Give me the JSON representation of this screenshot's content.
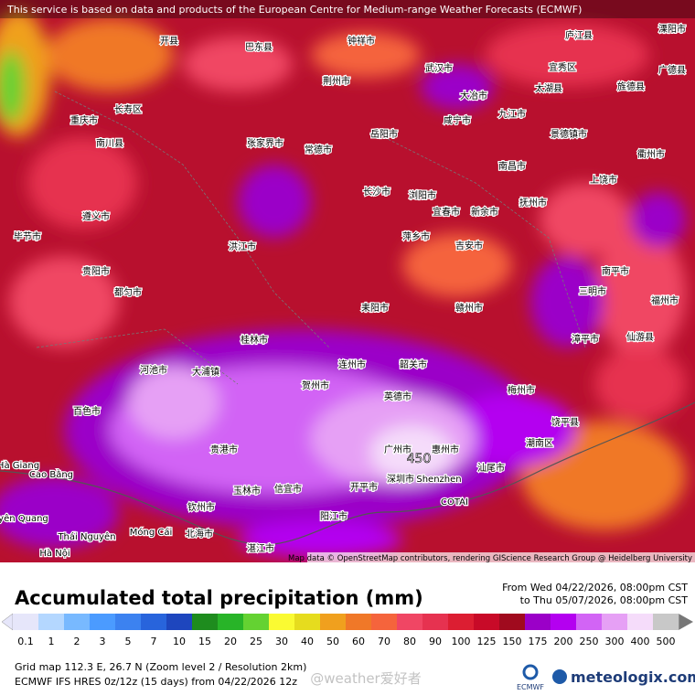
{
  "header": {
    "notice": "This service is based on data and products of the European Centre for Medium-range Weather Forecasts (ECMWF)"
  },
  "map": {
    "cities": [
      "武汉市",
      "荆州市",
      "岳阳市",
      "张家界市",
      "常德市",
      "长沙市",
      "浏阳市",
      "南昌市",
      "九江市",
      "景德镇市",
      "上饶市",
      "衢州市",
      "抚州市",
      "宜春市",
      "新余市",
      "萍乡市",
      "吉安市",
      "赣州市",
      "三明市",
      "南平市",
      "福州市",
      "漳平市",
      "仙游县",
      "梅州市",
      "潮南区",
      "饶平县",
      "汕尾市",
      "惠州市",
      "广州市",
      "深圳市",
      "Shenzhen",
      "COTAI",
      "开平市",
      "阳江市",
      "信宜市",
      "玉林市",
      "贵港市",
      "钦州市",
      "北海市",
      "湛江市",
      "Cao Bằng",
      "Hà Giang",
      "Tuyên Quang",
      "Thái Nguyên",
      "Móng Cái",
      "Hà Nội",
      "桂林市",
      "河池市",
      "大浦镇",
      "百色市",
      "韶关市",
      "英德市",
      "连州市",
      "贺州市",
      "耒阳市",
      "洪江市",
      "贵阳市",
      "遵义市",
      "毕节市",
      "都匀市",
      "庐江县",
      "宜秀区",
      "太湖县",
      "旌德县",
      "溧阳市",
      "广德县",
      "大冶市",
      "咸宁市",
      "重庆市",
      "长寿区",
      "南川县",
      "开县",
      "巴东县",
      "钟祥市"
    ],
    "max_label": "450",
    "attribution": "Map data © OpenStreetMap contributors, rendering GIScience Research Group @ Heidelberg University"
  },
  "title": "Accumulated total precipitation (mm)",
  "period": {
    "from": "From Wed 04/22/2026, 08:00pm CST",
    "to": "to Thu 05/07/2026, 08:00pm CST"
  },
  "legend": {
    "items": [
      {
        "value": 0.1,
        "color": "#e6e6fa"
      },
      {
        "value": 1,
        "color": "#b4d7ff"
      },
      {
        "value": 2,
        "color": "#78b9ff"
      },
      {
        "value": 3,
        "color": "#4b9bff"
      },
      {
        "value": 5,
        "color": "#3c82f0"
      },
      {
        "value": 7,
        "color": "#2864dc"
      },
      {
        "value": 10,
        "color": "#1e46be"
      },
      {
        "value": 15,
        "color": "#1e8c1e"
      },
      {
        "value": 20,
        "color": "#28b428"
      },
      {
        "value": 25,
        "color": "#64d232"
      },
      {
        "value": 30,
        "color": "#fafa32"
      },
      {
        "value": 40,
        "color": "#e6dc1e"
      },
      {
        "value": 50,
        "color": "#f0a01e"
      },
      {
        "value": 60,
        "color": "#f07828"
      },
      {
        "value": 70,
        "color": "#f5643c"
      },
      {
        "value": 80,
        "color": "#f04664"
      },
      {
        "value": 90,
        "color": "#e63250"
      },
      {
        "value": 100,
        "color": "#dc1e32"
      },
      {
        "value": 125,
        "color": "#c80a28"
      },
      {
        "value": 150,
        "color": "#a00a1e"
      },
      {
        "value": 175,
        "color": "#9b00c8"
      },
      {
        "value": 200,
        "color": "#b400f0"
      },
      {
        "value": 250,
        "color": "#d264f5"
      },
      {
        "value": 300,
        "color": "#e6a0f5"
      },
      {
        "value": 400,
        "color": "#f5dcfa"
      },
      {
        "value": 500,
        "color": "#c8c8c8"
      }
    ]
  },
  "footer": {
    "grid": "Grid map 112.3 E, 26.7 N (Zoom level 2 / Resolution 2km)",
    "model": "ECMWF IFS HRES 0z/12z (15 days) from 04/22/2026 12z",
    "watermark": "@weather爱好者",
    "logo_left": "ECMWF",
    "logo_right": "meteologix.com"
  }
}
